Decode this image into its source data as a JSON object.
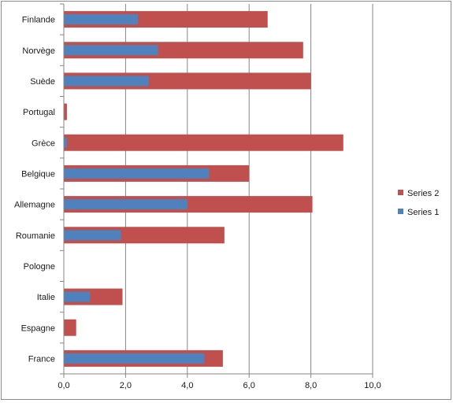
{
  "chart_data": {
    "type": "bar",
    "orientation": "horizontal",
    "categories": [
      "Finlande",
      "Norvège",
      "Suède",
      "Portugal",
      "Grèce",
      "Belgique",
      "Allemagne",
      "Roumanie",
      "Pologne",
      "Italie",
      "Espagne",
      "France"
    ],
    "series": [
      {
        "name": "Series 1",
        "color": "#4f81bd",
        "values": [
          2.4,
          3.05,
          2.75,
          0.0,
          0.1,
          4.7,
          4.0,
          1.85,
          0.0,
          0.85,
          0.0,
          4.55
        ]
      },
      {
        "name": "Series 2",
        "color": "#c0504d",
        "values": [
          6.6,
          7.75,
          8.0,
          0.1,
          9.05,
          6.0,
          8.05,
          5.2,
          0.0,
          1.9,
          0.4,
          5.15
        ]
      }
    ],
    "xlim": [
      0,
      10
    ],
    "xticks": [
      0,
      2,
      4,
      6,
      8,
      10
    ],
    "xtick_labels": [
      "0,0",
      "2,0",
      "4,0",
      "6,0",
      "8,0",
      "10,0"
    ],
    "grid": true,
    "legend": {
      "placement": "right",
      "order": [
        "Series 2",
        "Series 1"
      ]
    },
    "title": "",
    "xlabel": "",
    "ylabel": ""
  }
}
